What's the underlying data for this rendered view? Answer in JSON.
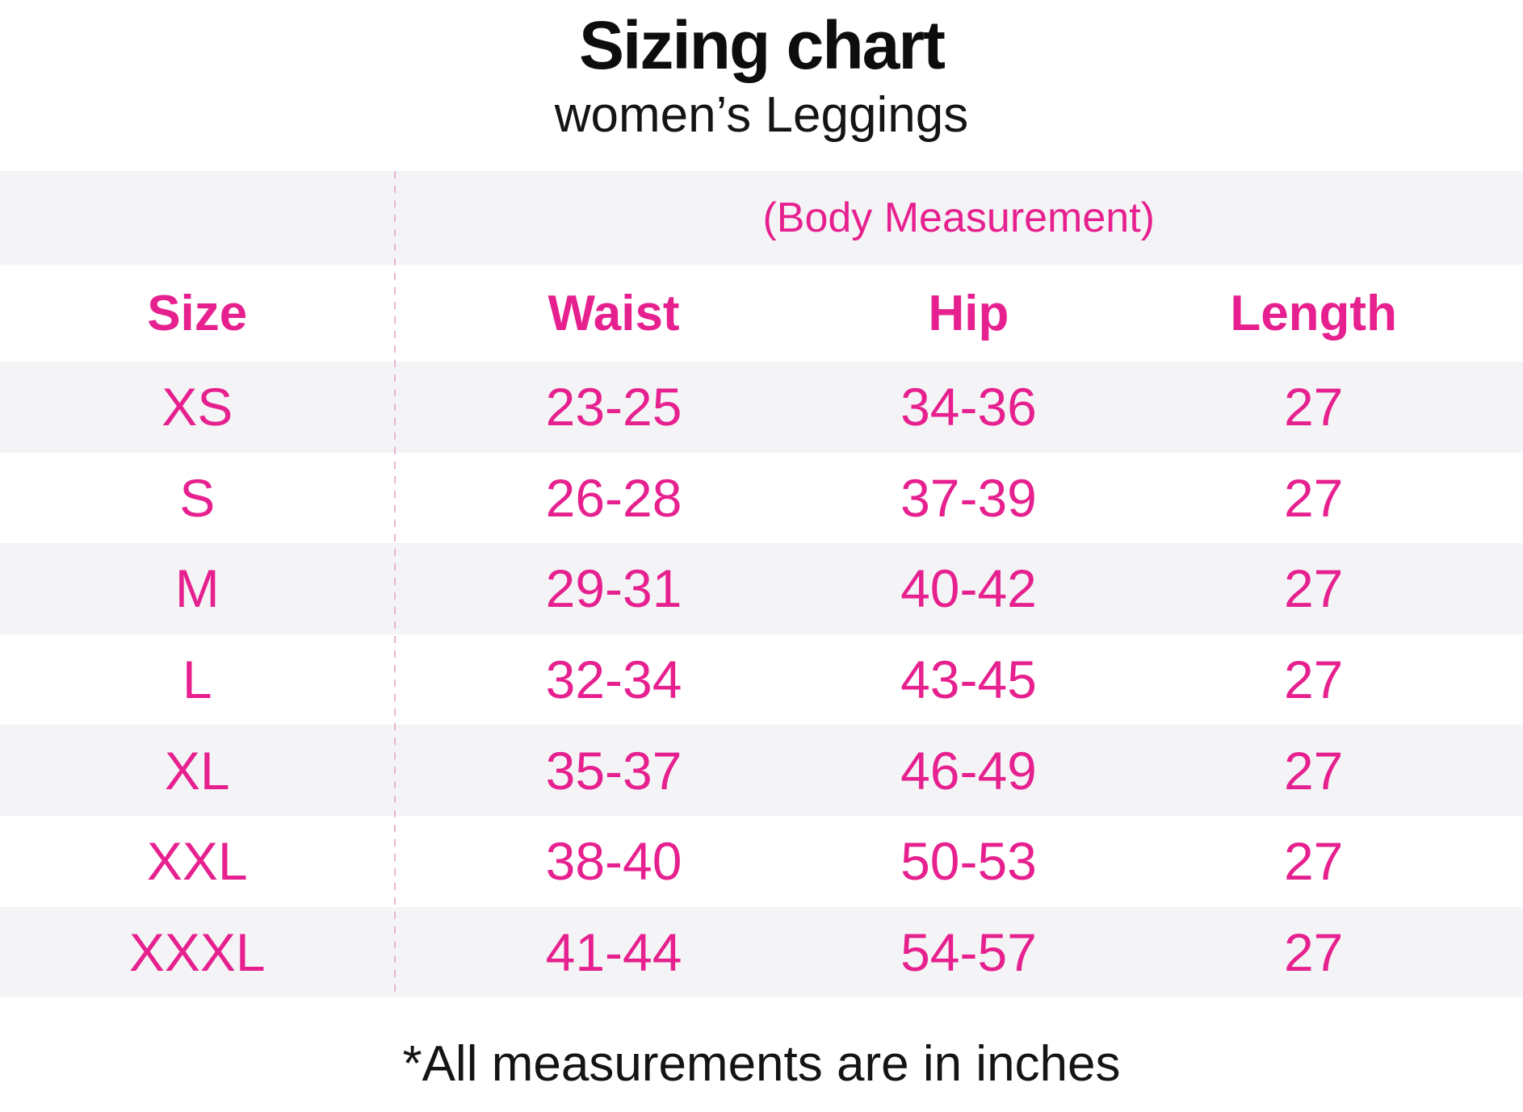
{
  "header": {
    "title": "Sizing chart",
    "subtitle": "women’s Leggings"
  },
  "table": {
    "group_header": "(Body Measurement)",
    "columns": {
      "size": "Size",
      "waist": "Waist",
      "hip": "Hip",
      "length": "Length"
    },
    "rows": [
      {
        "size": "XS",
        "waist": "23-25",
        "hip": "34-36",
        "length": "27"
      },
      {
        "size": "S",
        "waist": "26-28",
        "hip": "37-39",
        "length": "27"
      },
      {
        "size": "M",
        "waist": "29-31",
        "hip": "40-42",
        "length": "27"
      },
      {
        "size": "L",
        "waist": "32-34",
        "hip": "43-45",
        "length": "27"
      },
      {
        "size": "XL",
        "waist": "35-37",
        "hip": "46-49",
        "length": "27"
      },
      {
        "size": "XXL",
        "waist": "38-40",
        "hip": "50-53",
        "length": "27"
      },
      {
        "size": "XXXL",
        "waist": "41-44",
        "hip": "54-57",
        "length": "27"
      }
    ]
  },
  "footer": {
    "note": "*All measurements are in inches"
  },
  "colors": {
    "accent_pink": "#e6218f",
    "row_alt_gray": "#f4f4f6",
    "divider_pink": "#e8b4d0",
    "text_black": "#111111"
  },
  "chart_data": {
    "type": "table",
    "title": "Sizing chart",
    "subtitle": "women’s Leggings",
    "group_header": "(Body Measurement)",
    "columns": [
      "Size",
      "Waist",
      "Hip",
      "Length"
    ],
    "rows": [
      [
        "XS",
        "23-25",
        "34-36",
        "27"
      ],
      [
        "S",
        "26-28",
        "37-39",
        "27"
      ],
      [
        "M",
        "29-31",
        "40-42",
        "27"
      ],
      [
        "L",
        "32-34",
        "43-45",
        "27"
      ],
      [
        "XL",
        "35-37",
        "46-49",
        "27"
      ],
      [
        "XXL",
        "38-40",
        "50-53",
        "27"
      ],
      [
        "XXXL",
        "41-44",
        "54-57",
        "27"
      ]
    ],
    "note": "*All measurements are in inches",
    "layout_hints": {
      "striped_rows": true,
      "stripe_start": "gray",
      "size_column_separated_by_dashed_line": true
    }
  }
}
